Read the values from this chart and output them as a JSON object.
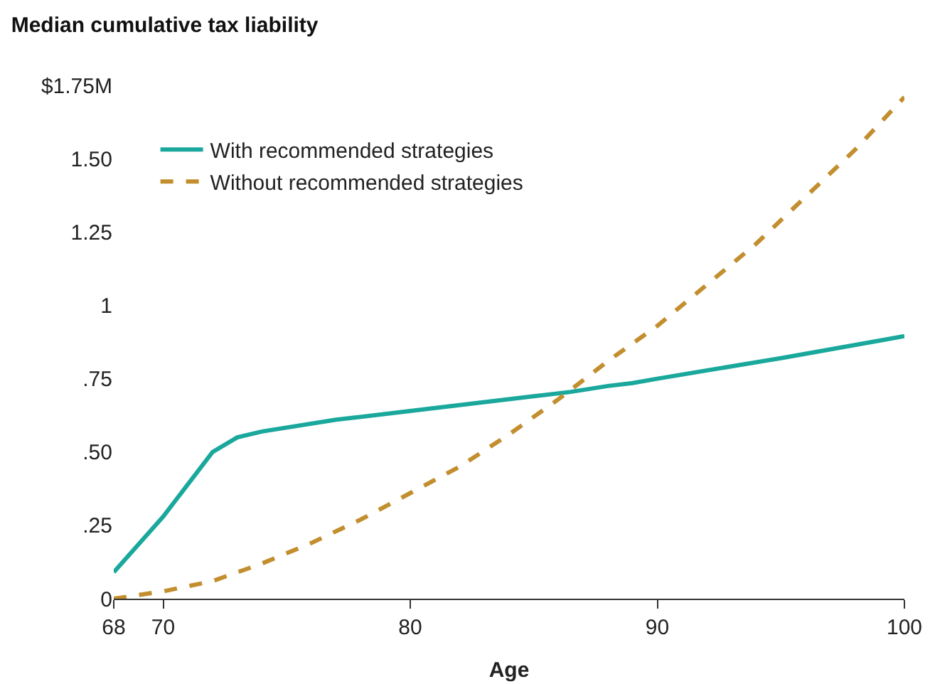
{
  "chart_data": {
    "type": "line",
    "title": "Median cumulative tax liability",
    "xlabel": "Age",
    "xlim": [
      68,
      100
    ],
    "xticks": [
      68,
      70,
      80,
      90,
      100
    ],
    "ylim": [
      0,
      1.75
    ],
    "yticks": [
      0,
      {
        "value": 0.25,
        "label": ".25"
      },
      {
        "value": 0.5,
        "label": ".50"
      },
      {
        "value": 0.75,
        "label": ".75"
      },
      1,
      1.25,
      {
        "value": 1.5,
        "label": "1.50"
      },
      {
        "value": 1.75,
        "label": "$1.75M"
      }
    ],
    "grid": false,
    "legend": "top left",
    "marker": "none",
    "series": [
      {
        "name": "With recommended strategies",
        "color": "#1aa89c",
        "line_style": "solid",
        "x": [
          68,
          70,
          71,
          72,
          73,
          74,
          77,
          80,
          85,
          86.5,
          88,
          89,
          90,
          95,
          99,
          100
        ],
        "values": [
          0.09,
          0.28,
          0.39,
          0.5,
          0.55,
          0.57,
          0.61,
          0.64,
          0.69,
          0.705,
          0.725,
          0.735,
          0.75,
          0.82,
          0.88,
          0.895
        ]
      },
      {
        "name": "Without recommended strategies",
        "color": "#c28e2e",
        "line_style": "dashed",
        "x": [
          68,
          70,
          72,
          74,
          76,
          78,
          80,
          82,
          84,
          86,
          88,
          90,
          92,
          94,
          96,
          98,
          100
        ],
        "values": [
          0,
          0.025,
          0.06,
          0.12,
          0.19,
          0.27,
          0.36,
          0.45,
          0.56,
          0.68,
          0.81,
          0.93,
          1.07,
          1.21,
          1.37,
          1.53,
          1.71
        ]
      }
    ]
  }
}
